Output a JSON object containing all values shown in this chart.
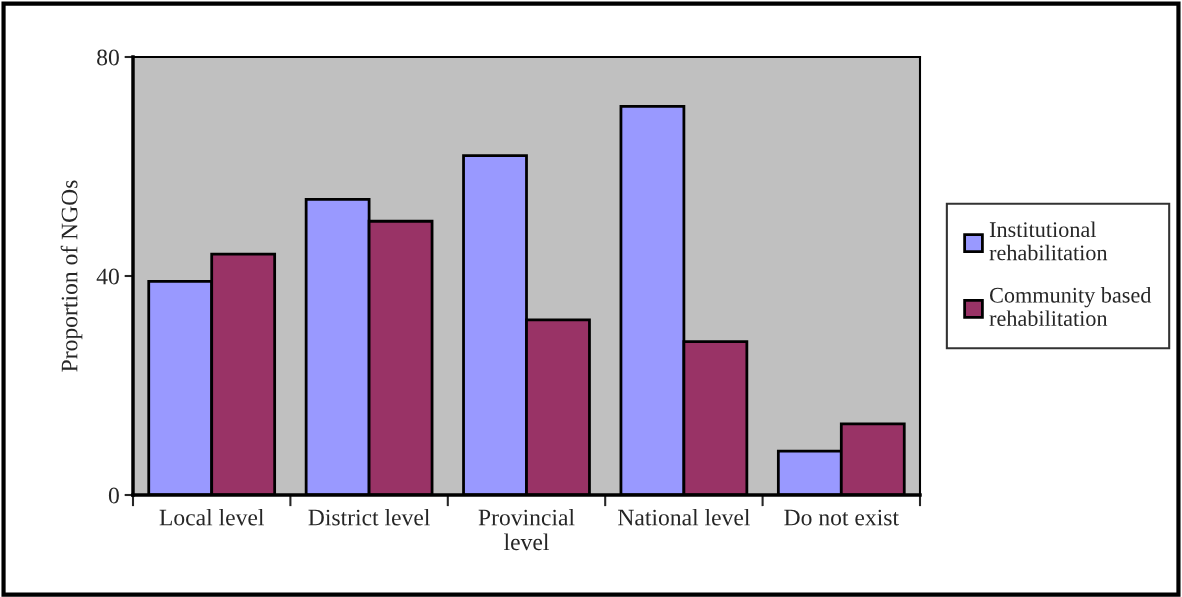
{
  "chart_data": {
    "type": "bar",
    "ylabel": "Proportion of NGOs",
    "categories": [
      "Local level",
      "District level",
      "Provincial\nlevel",
      "National level",
      "Do not exist"
    ],
    "series": [
      {
        "name": "Institutional\nrehabilitation",
        "color": "#9999ff",
        "values": [
          39,
          54,
          62,
          71,
          8
        ]
      },
      {
        "name": "Community based\nrehabilitation",
        "color": "#993366",
        "values": [
          44,
          50,
          32,
          28,
          13
        ]
      }
    ],
    "ylim": [
      0,
      80
    ],
    "yticks": [
      0,
      40,
      80
    ],
    "grid": false,
    "legend": "right"
  }
}
